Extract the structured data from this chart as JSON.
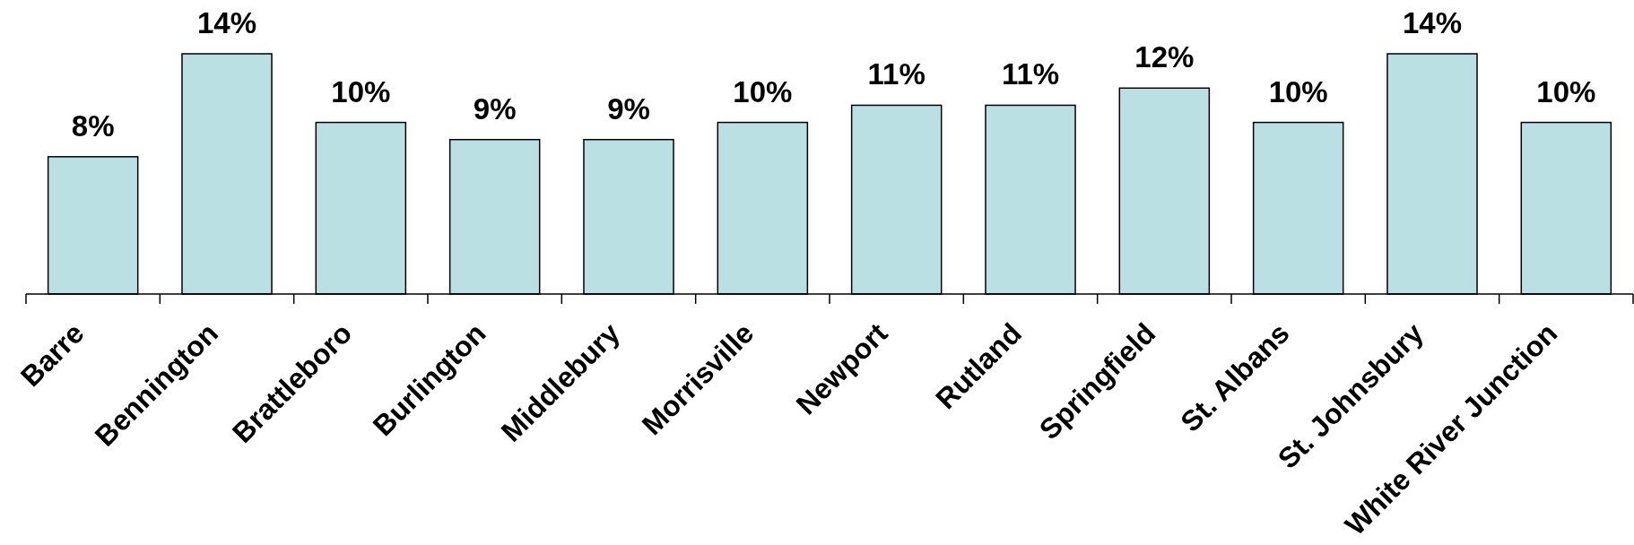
{
  "chart_data": {
    "type": "bar",
    "categories": [
      "Barre",
      "Bennington",
      "Brattleboro",
      "Burlington",
      "Middlebury",
      "Morrisville",
      "Newport",
      "Rutland",
      "Springfield",
      "St. Albans",
      "St. Johnsbury",
      "White River Junction"
    ],
    "values": [
      8,
      14,
      10,
      9,
      9,
      10,
      11,
      11,
      12,
      10,
      14,
      10
    ],
    "value_labels": [
      "8%",
      "14%",
      "10%",
      "9%",
      "9%",
      "10%",
      "11%",
      "11%",
      "12%",
      "10%",
      "14%",
      "10%"
    ],
    "color": "#bae0e3"
  }
}
